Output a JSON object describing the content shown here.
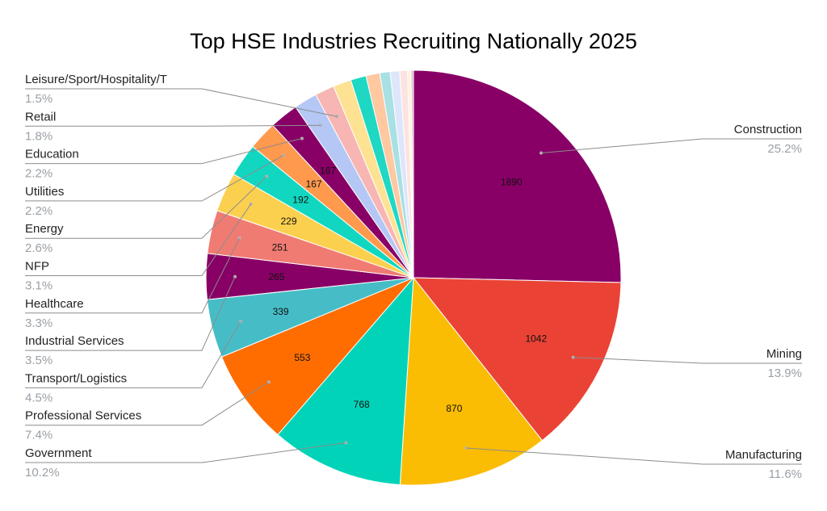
{
  "chart_data": {
    "type": "pie",
    "title": "Top HSE Industries Recruiting Nationally 2025",
    "slices": [
      {
        "label": "Construction",
        "value": 1890,
        "percent": "25.2%",
        "color": "#880066",
        "side": "right",
        "show_value": "1890"
      },
      {
        "label": "Mining",
        "value": 1042,
        "percent": "13.9%",
        "color": "#ea4335",
        "side": "right",
        "show_value": "1042"
      },
      {
        "label": "Manufacturing",
        "value": 870,
        "percent": "11.6%",
        "color": "#fbbc04",
        "side": "right",
        "show_value": "870"
      },
      {
        "label": "Government",
        "value": 768,
        "percent": "10.2%",
        "color": "#00d3b8",
        "side": "left",
        "show_value": "768"
      },
      {
        "label": "Professional Services",
        "value": 553,
        "percent": "7.4%",
        "color": "#ff6d01",
        "side": "left",
        "show_value": "553"
      },
      {
        "label": "Transport/Logistics",
        "value": 339,
        "percent": "4.5%",
        "color": "#46bdc6",
        "side": "left",
        "show_value": "339"
      },
      {
        "label": "Industrial Services",
        "value": 265,
        "percent": "3.5%",
        "color": "#880066",
        "side": "left",
        "show_value": "265"
      },
      {
        "label": "Healthcare",
        "value": 251,
        "percent": "3.3%",
        "color": "#f07b72",
        "side": "left",
        "show_value": "251"
      },
      {
        "label": "NFP",
        "value": 229,
        "percent": "3.1%",
        "color": "#fcd04f",
        "side": "left",
        "show_value": "229"
      },
      {
        "label": "Energy",
        "value": 192,
        "percent": "2.6%",
        "color": "#11d7c0",
        "side": "left",
        "show_value": "192"
      },
      {
        "label": "Utilities",
        "value": 167,
        "percent": "2.2%",
        "color": "#ff994d",
        "side": "left",
        "show_value": "167"
      },
      {
        "label": "Education",
        "value": 167,
        "percent": "2.2%",
        "color": "#880066",
        "side": "left",
        "show_value": "167"
      },
      {
        "label": "Retail",
        "value": 135,
        "percent": "1.8%",
        "color": "#b4c7f5",
        "side": "left",
        "show_value": ""
      },
      {
        "label": "Leisure/Sport/Hospitality/T",
        "value": 113,
        "percent": "1.5%",
        "color": "#f7b6b3",
        "side": "left",
        "show_value": ""
      },
      {
        "label": "",
        "value": 105,
        "color": "#fde293",
        "side": "none",
        "show_value": ""
      },
      {
        "label": "",
        "value": 90,
        "color": "#1ed8c3",
        "side": "none",
        "show_value": ""
      },
      {
        "label": "",
        "value": 80,
        "color": "#ffc8a1",
        "side": "none",
        "show_value": ""
      },
      {
        "label": "",
        "value": 60,
        "color": "#a8e0e4",
        "side": "none",
        "show_value": ""
      },
      {
        "label": "",
        "value": 55,
        "color": "#dde6fb",
        "side": "none",
        "show_value": ""
      },
      {
        "label": "",
        "value": 45,
        "color": "#fce3e1",
        "side": "none",
        "show_value": ""
      },
      {
        "label": "",
        "value": 20,
        "color": "#fff4d4",
        "side": "none",
        "show_value": ""
      },
      {
        "label": "",
        "value": 14,
        "color": "#e0b3d9",
        "side": "none",
        "show_value": ""
      }
    ]
  }
}
